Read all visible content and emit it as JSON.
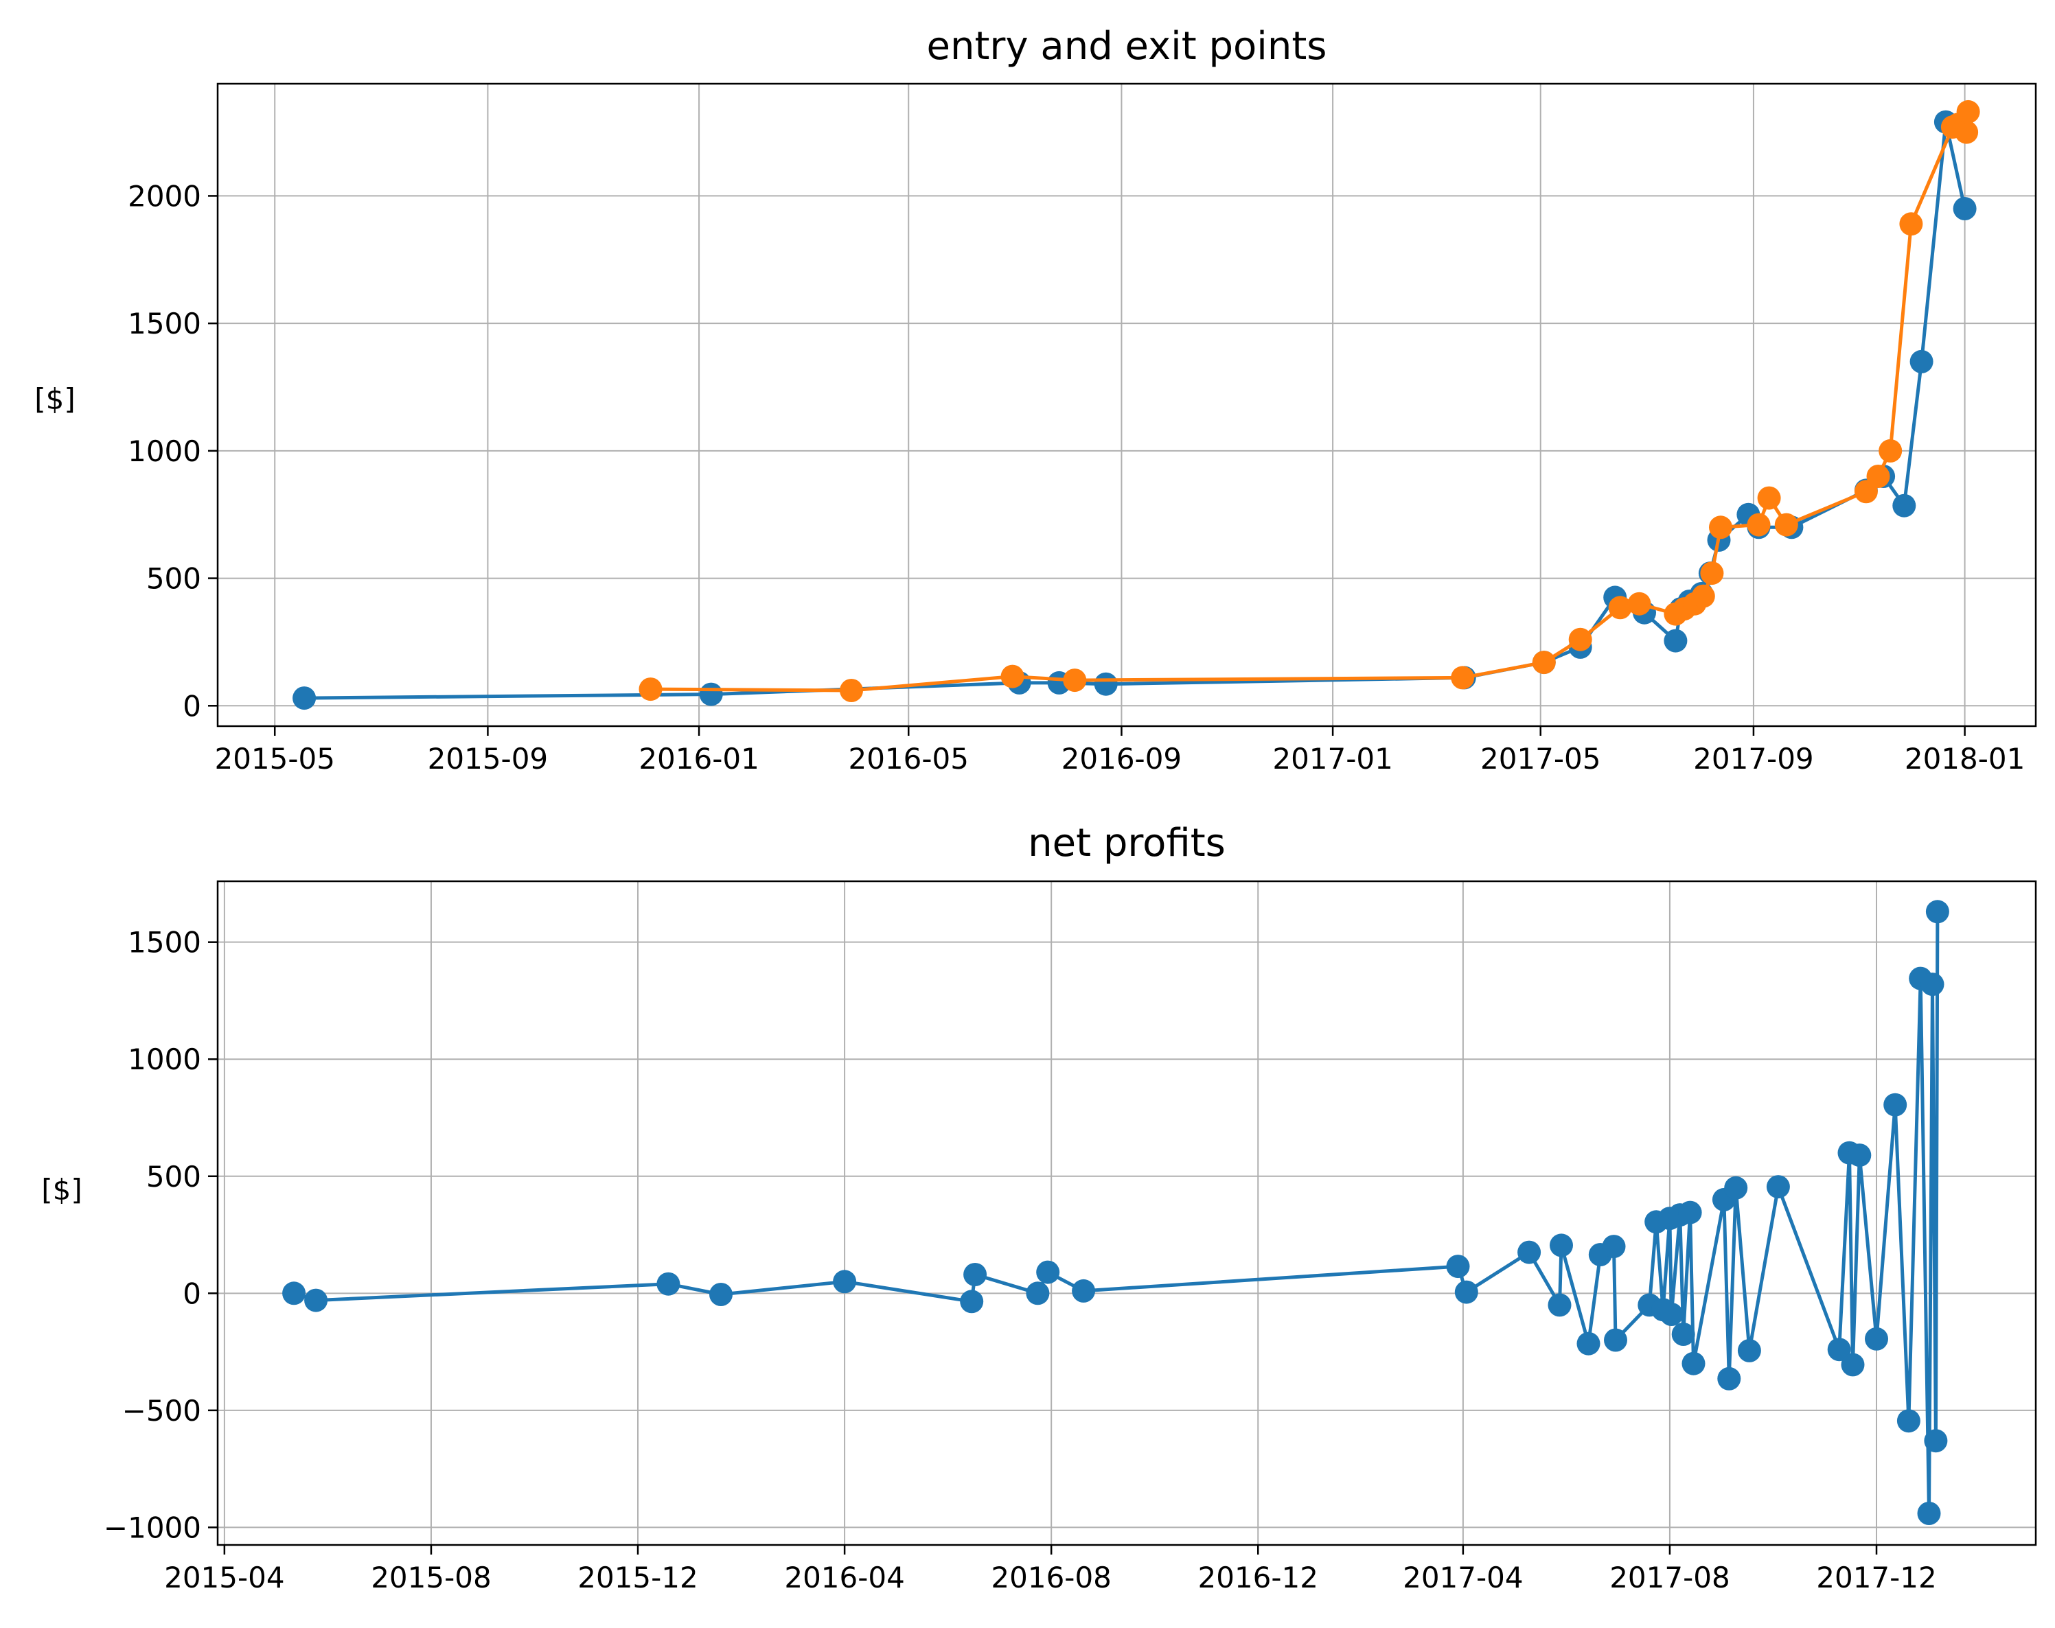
{
  "colors": {
    "series_blue": "#1f77b4",
    "series_orange": "#ff7f0e",
    "grid": "#b0b0b0",
    "axes": "#000000",
    "background": "#ffffff"
  },
  "chart_data": [
    {
      "type": "line",
      "title": "entry and exit points",
      "xlabel": "",
      "ylabel": "[$]",
      "xaxis": "date",
      "xlim": [
        "2015-03-29",
        "2018-02-11"
      ],
      "ylim": [
        -80,
        2440
      ],
      "xticks": [
        "2015-05-01",
        "2015-09-01",
        "2016-01-01",
        "2016-05-01",
        "2016-09-01",
        "2017-01-01",
        "2017-05-01",
        "2017-09-01",
        "2018-01-01"
      ],
      "xtick_labels": [
        "2015-05",
        "2015-09",
        "2016-01",
        "2016-05",
        "2016-09",
        "2017-01",
        "2017-05",
        "2017-09",
        "2018-01"
      ],
      "yticks": [
        0,
        500,
        1000,
        1500,
        2000
      ],
      "ytick_labels": [
        "0",
        "500",
        "1000",
        "1500",
        "2000"
      ],
      "grid": true,
      "marker": "circle",
      "series": [
        {
          "color": "#1f77b4",
          "x": [
            "2015-05-18",
            "2016-01-08",
            "2016-07-04",
            "2016-07-27",
            "2016-08-23",
            "2017-03-18",
            "2017-05-03",
            "2017-05-24",
            "2017-06-13",
            "2017-06-30",
            "2017-07-18",
            "2017-07-21",
            "2017-07-26",
            "2017-08-02",
            "2017-08-07",
            "2017-08-12",
            "2017-08-29",
            "2017-09-04",
            "2017-09-23",
            "2017-11-05",
            "2017-11-15",
            "2017-11-27",
            "2017-12-07",
            "2017-12-21",
            "2018-01-01"
          ],
          "y": [
            30,
            45,
            90,
            90,
            85,
            110,
            170,
            230,
            425,
            365,
            255,
            380,
            410,
            440,
            520,
            650,
            750,
            700,
            700,
            845,
            900,
            785,
            1350,
            2290,
            1950
          ]
        },
        {
          "color": "#ff7f0e",
          "x": [
            "2015-12-04",
            "2016-03-29",
            "2016-06-30",
            "2016-08-05",
            "2017-03-17",
            "2017-05-03",
            "2017-05-24",
            "2017-06-16",
            "2017-06-27",
            "2017-07-18",
            "2017-07-23",
            "2017-07-29",
            "2017-08-03",
            "2017-08-08",
            "2017-08-13",
            "2017-09-04",
            "2017-09-10",
            "2017-09-20",
            "2017-11-05",
            "2017-11-12",
            "2017-11-19",
            "2017-12-01",
            "2017-12-25",
            "2017-12-28",
            "2018-01-02",
            "2018-01-03"
          ],
          "y": [
            65,
            60,
            115,
            100,
            110,
            170,
            260,
            385,
            400,
            360,
            380,
            400,
            430,
            520,
            700,
            710,
            815,
            710,
            840,
            900,
            1000,
            1890,
            2270,
            2280,
            2250,
            2330
          ]
        }
      ]
    },
    {
      "type": "line",
      "title": "net profits",
      "xlabel": "",
      "ylabel": "[$]",
      "xaxis": "date",
      "xlim": [
        "2015-03-28",
        "2018-03-05"
      ],
      "ylim": [
        -1075,
        1760
      ],
      "xticks": [
        "2015-04-01",
        "2015-08-01",
        "2015-12-01",
        "2016-04-01",
        "2016-08-01",
        "2016-12-01",
        "2017-04-01",
        "2017-08-01",
        "2017-12-01"
      ],
      "xtick_labels": [
        "2015-04",
        "2015-08",
        "2015-12",
        "2016-04",
        "2016-08",
        "2016-12",
        "2017-04",
        "2017-08",
        "2017-12"
      ],
      "yticks": [
        -1000,
        -500,
        0,
        500,
        1000,
        1500
      ],
      "ytick_labels": [
        "−1000",
        "−500",
        "0",
        "500",
        "1000",
        "1500"
      ],
      "grid": true,
      "marker": "circle",
      "series": [
        {
          "color": "#1f77b4",
          "x": [
            "2015-05-12",
            "2015-05-25",
            "2015-12-19",
            "2016-01-19",
            "2016-04-01",
            "2016-06-15",
            "2016-06-17",
            "2016-07-24",
            "2016-07-30",
            "2016-08-20",
            "2017-03-29",
            "2017-04-03",
            "2017-05-10",
            "2017-05-28",
            "2017-05-29",
            "2017-06-14",
            "2017-06-21",
            "2017-06-29",
            "2017-06-30",
            "2017-07-20",
            "2017-07-24",
            "2017-07-28",
            "2017-08-01",
            "2017-08-02",
            "2017-08-07",
            "2017-08-09",
            "2017-08-13",
            "2017-08-15",
            "2017-09-02",
            "2017-09-05",
            "2017-09-09",
            "2017-09-17",
            "2017-10-04",
            "2017-11-09",
            "2017-11-15",
            "2017-11-17",
            "2017-11-21",
            "2017-12-01",
            "2017-12-12",
            "2017-12-20",
            "2017-12-27",
            "2018-01-01",
            "2018-01-03",
            "2018-01-05",
            "2018-01-06"
          ],
          "y": [
            0,
            -30,
            40,
            -5,
            50,
            -35,
            80,
            0,
            90,
            10,
            115,
            5,
            175,
            -50,
            205,
            -215,
            165,
            200,
            -200,
            -50,
            305,
            -70,
            320,
            -90,
            335,
            -175,
            345,
            -300,
            400,
            -365,
            450,
            -245,
            455,
            -240,
            600,
            -305,
            590,
            -195,
            805,
            -545,
            1345,
            -940,
            1320,
            -630,
            1630
          ]
        }
      ]
    }
  ]
}
